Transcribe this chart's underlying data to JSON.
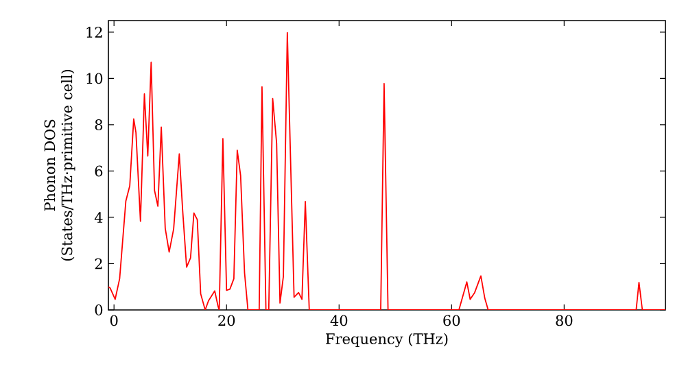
{
  "chart_data": {
    "type": "line",
    "xlabel": "Frequency (THz)",
    "ylabel": "Phonon DOS (States/THz·primitive cell)",
    "xlim": [
      -1,
      98
    ],
    "ylim": [
      0,
      12.5
    ],
    "xticks": [
      0,
      20,
      40,
      60,
      80
    ],
    "yticks": [
      0,
      2,
      4,
      6,
      8,
      10,
      12
    ],
    "marker": "none",
    "line_style": "solid",
    "series": [
      {
        "color": "#ff0000",
        "x": [
          -1,
          -0.7,
          0.2,
          1.0,
          2.1,
          2.8,
          3.5,
          3.9,
          4.7,
          5.4,
          6.0,
          6.6,
          7.2,
          7.8,
          8.4,
          9.1,
          9.8,
          10.6,
          11.6,
          12.2,
          12.9,
          13.6,
          14.2,
          14.8,
          15.4,
          16.2,
          16.8,
          17.9,
          18.5,
          18.7,
          19.35,
          20.0,
          20.6,
          21.3,
          21.9,
          22.5,
          23.2,
          23.8,
          25.8,
          26.3,
          27.0,
          27.5,
          28.2,
          28.9,
          29.5,
          30.1,
          30.8,
          32.0,
          32.8,
          33.4,
          34.0,
          34.7,
          47.4,
          48.0,
          48.7,
          61.3,
          62.7,
          63.3,
          64.1,
          65.2,
          65.9,
          66.5,
          92.8,
          93.3,
          93.9,
          98
        ],
        "values": [
          1.0,
          0.95,
          0.46,
          1.35,
          4.7,
          5.36,
          8.25,
          7.66,
          3.83,
          9.33,
          6.65,
          10.7,
          5.16,
          4.48,
          7.9,
          3.53,
          2.5,
          3.5,
          6.74,
          4.3,
          1.85,
          2.25,
          4.19,
          3.9,
          0.7,
          0,
          0.4,
          0.82,
          0.15,
          0,
          7.4,
          0.85,
          0.9,
          1.35,
          6.9,
          5.8,
          1.6,
          0,
          0,
          9.64,
          0,
          0,
          9.13,
          7.2,
          0.3,
          1.45,
          11.98,
          0.55,
          0.75,
          0.46,
          4.68,
          0,
          0,
          9.78,
          0,
          0,
          1.21,
          0.46,
          0.75,
          1.47,
          0.5,
          0,
          0,
          1.19,
          0,
          0
        ]
      }
    ]
  }
}
